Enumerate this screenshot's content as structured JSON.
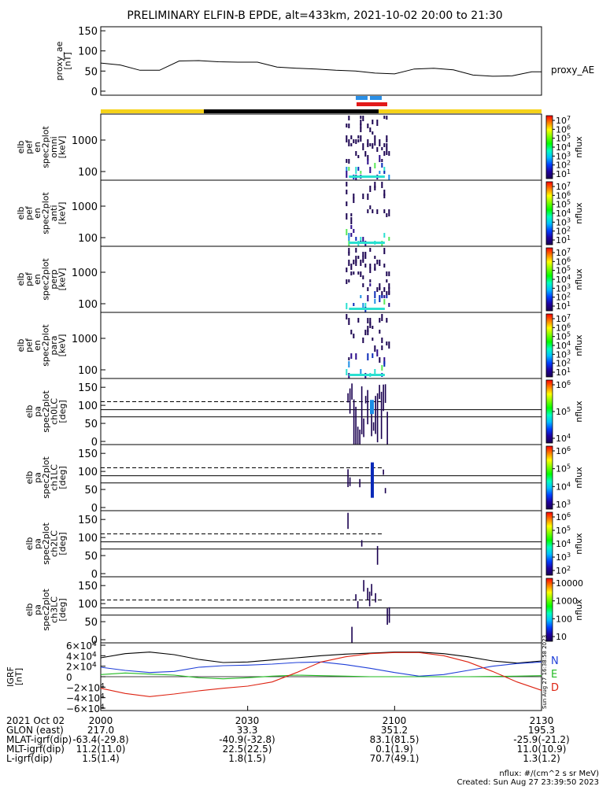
{
  "title": "PRELIMINARY ELFIN-B EPDE, alt=433km, 2021-10-02 20:00 to 21:30",
  "proxy_ae": {
    "ylabel_lines": [
      "proxy_ae",
      "[nT]"
    ],
    "yticks": [
      "150",
      "100",
      "50",
      "0"
    ],
    "ytick_values": [
      150,
      100,
      50,
      0
    ],
    "ylim": [
      -10,
      160
    ],
    "legend": "proxy_AE"
  },
  "spec_panels": [
    {
      "ylabel_lines": [
        "elb",
        "pef",
        "en",
        "spec2plot",
        "omni",
        "[keV]"
      ],
      "yticks": [
        "1000",
        "100"
      ],
      "colorbar_label": "nflux",
      "cb_ticks": [
        "10^7",
        "10^6",
        "10^5",
        "10^4",
        "10^3",
        "10^2",
        "10^1"
      ]
    },
    {
      "ylabel_lines": [
        "elb",
        "pef",
        "en",
        "spec2plot",
        "anti",
        "[keV]"
      ],
      "yticks": [
        "1000",
        "100"
      ],
      "colorbar_label": "nflux",
      "cb_ticks": [
        "10^7",
        "10^6",
        "10^5",
        "10^4",
        "10^3",
        "10^2",
        "10^1"
      ]
    },
    {
      "ylabel_lines": [
        "elb",
        "pef",
        "en",
        "spec2plot",
        "perp",
        "[keV]"
      ],
      "yticks": [
        "1000",
        "100"
      ],
      "colorbar_label": "nflux",
      "cb_ticks": [
        "10^7",
        "10^6",
        "10^5",
        "10^4",
        "10^3",
        "10^2",
        "10^1"
      ]
    },
    {
      "ylabel_lines": [
        "elb",
        "pef",
        "en",
        "spec2plot",
        "para",
        "[keV]"
      ],
      "yticks": [
        "1000",
        "100"
      ],
      "colorbar_label": "nflux",
      "cb_ticks": [
        "10^7",
        "10^6",
        "10^5",
        "10^4",
        "10^3",
        "10^2",
        "10^1"
      ]
    }
  ],
  "pa_panels": [
    {
      "ylabel_lines": [
        "elb",
        "pa",
        "spec2plot",
        "ch0LC",
        "[deg]"
      ],
      "yticks": [
        "150",
        "100",
        "50",
        "0"
      ],
      "colorbar_label": "nflux",
      "cb_ticks": [
        "10^6",
        "10^5",
        "10^4"
      ]
    },
    {
      "ylabel_lines": [
        "elb",
        "pa",
        "spec2plot",
        "ch1LC",
        "[deg]"
      ],
      "yticks": [
        "150",
        "100",
        "50",
        "0"
      ],
      "colorbar_label": "nflux",
      "cb_ticks": [
        "10^6",
        "10^5",
        "10^4",
        "10^3"
      ]
    },
    {
      "ylabel_lines": [
        "elb",
        "pa",
        "spec2plot",
        "ch2LC",
        "[deg]"
      ],
      "yticks": [
        "150",
        "100",
        "50",
        "0"
      ],
      "colorbar_label": "nflux",
      "cb_ticks": [
        "10^6",
        "10^5",
        "10^4",
        "10^3",
        "10^2"
      ]
    },
    {
      "ylabel_lines": [
        "elb",
        "pa",
        "spec2plot",
        "ch3LC",
        "[deg]"
      ],
      "yticks": [
        "150",
        "100",
        "50",
        "0"
      ],
      "colorbar_label": "nflux",
      "cb_ticks": [
        "10000",
        "1000",
        "100",
        "10"
      ]
    }
  ],
  "igrf": {
    "ylabel_lines": [
      "IGRF",
      "[nT]"
    ],
    "yticks": [
      "6×10^4",
      "4×10^4",
      "2×10^4",
      "0",
      "−2×10^4",
      "−4×10^4",
      "−6×10^4"
    ],
    "legend": [
      {
        "name": "N",
        "color": "#1f3fd8"
      },
      {
        "name": "E",
        "color": "#22bb22"
      },
      {
        "name": "D",
        "color": "#dd2211"
      }
    ],
    "side_stamp": "Sun Aug 27 16:38:58 2023"
  },
  "chart_data": {
    "type": "line",
    "time_range": [
      "2021-10-02 20:00",
      "2021-10-02 21:30"
    ],
    "x_minutes_ticks": [
      "2000",
      "2030",
      "2100",
      "2130"
    ],
    "proxy_ae": {
      "x": [
        "20:00",
        "20:04",
        "20:08",
        "20:12",
        "20:16",
        "20:20",
        "20:24",
        "20:28",
        "20:32",
        "20:36",
        "20:40",
        "20:44",
        "20:48",
        "20:52",
        "20:56",
        "21:00",
        "21:04",
        "21:08",
        "21:12",
        "21:16",
        "21:20",
        "21:24",
        "21:28",
        "21:30"
      ],
      "y": [
        70,
        65,
        52,
        52,
        75,
        76,
        73,
        72,
        72,
        60,
        57,
        55,
        52,
        50,
        45,
        43,
        55,
        57,
        53,
        40,
        37,
        38,
        48,
        48
      ]
    },
    "igrf": {
      "x": [
        "20:00",
        "20:05",
        "20:10",
        "20:15",
        "20:20",
        "20:25",
        "20:30",
        "20:35",
        "20:40",
        "20:45",
        "20:50",
        "20:55",
        "21:00",
        "21:05",
        "21:10",
        "21:15",
        "21:20",
        "21:25",
        "21:30"
      ],
      "series": [
        {
          "name": "total",
          "values": [
            36000,
            44000,
            47000,
            42000,
            33000,
            27000,
            28000,
            32000,
            36000,
            40000,
            43000,
            45000,
            47000,
            47000,
            44000,
            38000,
            30000,
            26000,
            30000
          ]
        },
        {
          "name": "N",
          "values": [
            18000,
            12000,
            8000,
            10000,
            18000,
            21000,
            22000,
            24000,
            27000,
            28000,
            23000,
            16000,
            8000,
            1000,
            4000,
            12000,
            20000,
            25000,
            28000
          ]
        },
        {
          "name": "E",
          "values": [
            4000,
            7000,
            5000,
            3000,
            -2000,
            -4000,
            -2000,
            1000,
            3000,
            2000,
            1000,
            0,
            0,
            0,
            0,
            0,
            500,
            1000,
            2000
          ]
        },
        {
          "name": "D",
          "values": [
            -22000,
            -32000,
            -38000,
            -33000,
            -27000,
            -22000,
            -18000,
            -10000,
            8000,
            28000,
            38000,
            44000,
            46000,
            46000,
            40000,
            28000,
            10000,
            -10000,
            -26000
          ]
        }
      ]
    },
    "spectrogram_active_window": [
      "20:51",
      "20:58"
    ]
  },
  "footer": {
    "rows": [
      {
        "label": "2021 Oct 02",
        "values": [
          "2000",
          "2030",
          "2100",
          "2130"
        ]
      },
      {
        "label": "GLON (east)",
        "values": [
          "217.0",
          "33.3",
          "351.2",
          "195.3"
        ]
      },
      {
        "label": "MLAT-igrf(dip)",
        "values": [
          "-63.4(-29.8)",
          "-40.9(-32.8)",
          "83.1(81.5)",
          "-25.9(-21.2)"
        ]
      },
      {
        "label": "MLT-igrf(dip)",
        "values": [
          "11.2(11.0)",
          "22.5(22.5)",
          "0.1(1.9)",
          "11.0(10.9)"
        ]
      },
      {
        "label": "L-igrf(dip)",
        "values": [
          "1.5(1.4)",
          "1.8(1.5)",
          "70.7(49.1)",
          "1.3(1.2)"
        ]
      }
    ],
    "nflux_units": "nflux: #/(cm^2 s sr MeV)",
    "created": "Created: Sun Aug 27 23:39:50 2023"
  },
  "colors": {
    "ae_line": "#000000",
    "bar_yellow": "#f5d21a",
    "bar_black": "#000000",
    "bar_blue": "#2a8fe6",
    "bar_red": "#e21a1a",
    "dashed_line": "#000000"
  }
}
